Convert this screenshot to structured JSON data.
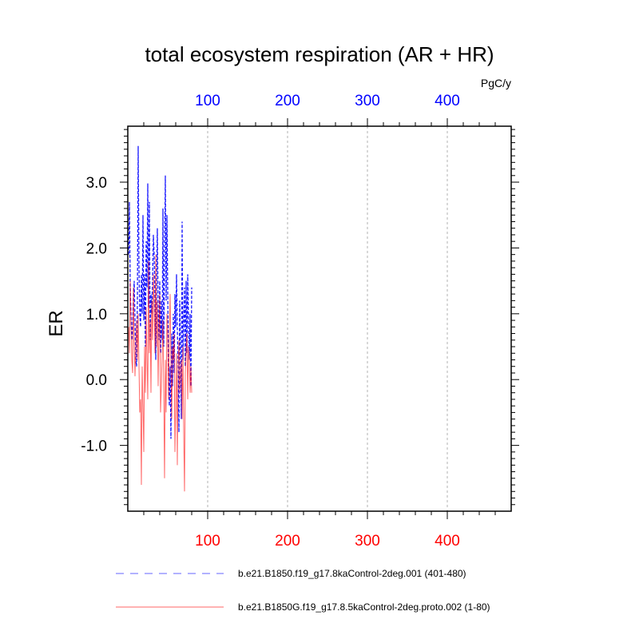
{
  "chart_data": {
    "type": "line",
    "title": "total ecosystem respiration (AR + HR)",
    "units": "PgC/y",
    "ylabel": "ER",
    "xlabel": "",
    "xlim": [
      0,
      480
    ],
    "ylim": [
      -2.0,
      3.85
    ],
    "x_ticks": [
      100,
      200,
      300,
      400
    ],
    "x_tick_labels": [
      "100",
      "200",
      "300",
      "400"
    ],
    "y_ticks": [
      -1.0,
      0.0,
      1.0,
      2.0,
      3.0
    ],
    "y_tick_labels": [
      "-1.0",
      "0.0",
      "1.0",
      "2.0",
      "3.0"
    ],
    "top_axis_color": "#0000ff",
    "bottom_axis_color": "#ff0000",
    "grid": "vertical dashed at major x ticks",
    "series": [
      {
        "name": "b.e21.B1850.f19_g17.8kaControl-2deg.001 (401-480)",
        "color": "#0000ff",
        "style": "dashed",
        "x": [
          1,
          2,
          3,
          4,
          5,
          6,
          7,
          8,
          9,
          10,
          11,
          12,
          13,
          14,
          15,
          16,
          17,
          18,
          19,
          20,
          21,
          22,
          23,
          24,
          25,
          26,
          27,
          28,
          29,
          30,
          31,
          32,
          33,
          34,
          35,
          36,
          37,
          38,
          39,
          40,
          41,
          42,
          43,
          44,
          45,
          46,
          47,
          48,
          49,
          50,
          51,
          52,
          53,
          54,
          55,
          56,
          57,
          58,
          59,
          60,
          61,
          62,
          63,
          64,
          65,
          66,
          67,
          68,
          69,
          70,
          71,
          72,
          73,
          74,
          75,
          76,
          77,
          78,
          79,
          80
        ],
        "y": [
          1.9,
          2.7,
          1.4,
          1.0,
          0.6,
          0.8,
          1.2,
          1.5,
          0.9,
          0.3,
          0.2,
          1.2,
          3.55,
          1.7,
          1.0,
          0.8,
          1.6,
          1.0,
          2.5,
          0.9,
          1.6,
          0.5,
          2.1,
          1.4,
          2.98,
          1.1,
          2.7,
          0.6,
          1.3,
          1.0,
          1.5,
          2.2,
          1.9,
          1.2,
          0.3,
          1.6,
          2.3,
          1.0,
          0.6,
          1.5,
          0.4,
          1.2,
          0.6,
          2.6,
          0.5,
          1.8,
          3.1,
          1.2,
          2.5,
          1.3,
          0.1,
          -0.4,
          0.2,
          -0.9,
          0.7,
          -0.1,
          1.0,
          0.1,
          1.3,
          0.8,
          1.6,
          0.8,
          0.2,
          -0.8,
          1.2,
          0.4,
          -0.6,
          2.4,
          0.3,
          0.9,
          1.4,
          0.2,
          1.5,
          0.4,
          1.6,
          0.9,
          0.3,
          1.0,
          -0.1,
          1.4
        ]
      },
      {
        "name": "b.e21.B1850G.f19_g17.8.5kaControl-2deg.proto.002 (1-80)",
        "color": "#ff0000",
        "style": "solid",
        "x": [
          1,
          2,
          3,
          4,
          5,
          6,
          7,
          8,
          9,
          10,
          11,
          12,
          13,
          14,
          15,
          16,
          17,
          18,
          19,
          20,
          21,
          22,
          23,
          24,
          25,
          26,
          27,
          28,
          29,
          30,
          31,
          32,
          33,
          34,
          35,
          36,
          37,
          38,
          39,
          40,
          41,
          42,
          43,
          44,
          45,
          46,
          47,
          48,
          49,
          50,
          51,
          52,
          53,
          54,
          55,
          56,
          57,
          58,
          59,
          60,
          61,
          62,
          63,
          64,
          65,
          66,
          67,
          68,
          69,
          70,
          71,
          72,
          73,
          74,
          75,
          76,
          77,
          78,
          79,
          80
        ],
        "y": [
          0.8,
          0.4,
          1.5,
          0.9,
          0.3,
          0.1,
          1.4,
          0.6,
          0.05,
          0.5,
          0.9,
          0.3,
          1.0,
          0.2,
          -0.5,
          -0.3,
          -1.6,
          0.2,
          -0.4,
          -1.1,
          0.5,
          -0.2,
          1.1,
          0.3,
          -0.3,
          1.8,
          0.4,
          0.9,
          -0.2,
          1.2,
          0.6,
          1.6,
          1.1,
          0.4,
          1.9,
          0.5,
          1.2,
          -0.1,
          0.7,
          1.3,
          -0.5,
          -0.1,
          0.4,
          0.9,
          -0.2,
          -1.5,
          0.3,
          -0.5,
          1.0,
          0.6,
          -0.3,
          0.8,
          1.3,
          0.2,
          -0.6,
          0.5,
          0.3,
          0.7,
          -1.1,
          -0.4,
          0.4,
          -1.3,
          0.2,
          0.6,
          -0.2,
          0.1,
          0.3,
          -0.6,
          0.5,
          -0.8,
          -1.7,
          0.1,
          0.4,
          0.7,
          -0.3,
          0.5,
          0.3,
          -0.2,
          0.2,
          -0.2
        ]
      }
    ],
    "legend": {
      "placement": "bottom",
      "entries": [
        {
          "label": "b.e21.B1850.f19_g17.8kaControl-2deg.001 (401-480)",
          "color": "#0000ff",
          "style": "dashed"
        },
        {
          "label": "b.e21.B1850G.f19_g17.8.5kaControl-2deg.proto.002 (1-80)",
          "color": "#ff0000",
          "style": "solid"
        }
      ]
    }
  }
}
